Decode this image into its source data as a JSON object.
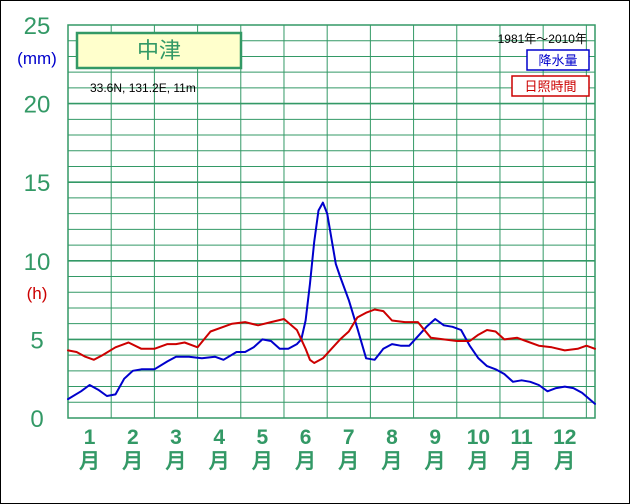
{
  "chart_data": {
    "type": "line",
    "station": "中津",
    "location": "33.6N,  131.2E,  11m",
    "period": "1981年〜2010年",
    "yticks": [
      "0",
      "5",
      "10",
      "15",
      "20",
      "25"
    ],
    "yunits": {
      "precip": "(mm)",
      "sun": "(h)"
    },
    "ylim": [
      0,
      25
    ],
    "months": [
      "1",
      "2",
      "3",
      "4",
      "5",
      "6",
      "7",
      "8",
      "9",
      "10",
      "11",
      "12"
    ],
    "month_suffix": "月",
    "xlim": [
      0.5,
      12.7
    ],
    "series": [
      {
        "name": "降水量",
        "color": "#0000cc",
        "x": [
          0.5,
          0.8,
          1.0,
          1.2,
          1.4,
          1.6,
          1.8,
          2.0,
          2.2,
          2.5,
          2.8,
          3.0,
          3.3,
          3.6,
          3.9,
          4.1,
          4.4,
          4.6,
          4.8,
          5.0,
          5.2,
          5.4,
          5.6,
          5.8,
          5.9,
          6.0,
          6.1,
          6.2,
          6.3,
          6.4,
          6.5,
          6.6,
          6.7,
          6.8,
          7.0,
          7.2,
          7.4,
          7.6,
          7.8,
          8.0,
          8.2,
          8.4,
          8.6,
          8.8,
          9.0,
          9.2,
          9.4,
          9.6,
          9.8,
          10.0,
          10.2,
          10.4,
          10.6,
          10.8,
          11.0,
          11.2,
          11.4,
          11.6,
          11.8,
          12.0,
          12.2,
          12.4,
          12.7
        ],
        "values": [
          1.2,
          1.7,
          2.1,
          1.8,
          1.4,
          1.5,
          2.5,
          3.0,
          3.1,
          3.1,
          3.6,
          3.9,
          3.9,
          3.8,
          3.9,
          3.7,
          4.2,
          4.2,
          4.5,
          5.0,
          4.9,
          4.4,
          4.4,
          4.7,
          5.0,
          6.2,
          8.5,
          11.2,
          13.2,
          13.7,
          13.0,
          11.4,
          9.8,
          9.0,
          7.5,
          5.7,
          3.8,
          3.7,
          4.4,
          4.7,
          4.6,
          4.6,
          5.2,
          5.8,
          6.3,
          5.9,
          5.8,
          5.6,
          4.6,
          3.8,
          3.3,
          3.1,
          2.8,
          2.3,
          2.4,
          2.3,
          2.1,
          1.7,
          1.9,
          2.0,
          1.9,
          1.6,
          0.9
        ]
      },
      {
        "name": "日照時間",
        "color": "#cc0000",
        "x": [
          0.5,
          0.7,
          0.9,
          1.1,
          1.3,
          1.6,
          1.9,
          2.2,
          2.5,
          2.8,
          3.0,
          3.2,
          3.5,
          3.8,
          4.1,
          4.3,
          4.6,
          4.9,
          5.2,
          5.5,
          5.8,
          5.9,
          6.0,
          6.1,
          6.2,
          6.4,
          6.6,
          6.8,
          7.0,
          7.2,
          7.4,
          7.6,
          7.8,
          8.0,
          8.3,
          8.6,
          8.9,
          9.2,
          9.5,
          9.8,
          10.0,
          10.2,
          10.4,
          10.6,
          10.9,
          11.1,
          11.4,
          11.7,
          12.0,
          12.3,
          12.5,
          12.7
        ],
        "values": [
          4.3,
          4.2,
          3.9,
          3.7,
          4.0,
          4.5,
          4.8,
          4.4,
          4.4,
          4.7,
          4.7,
          4.8,
          4.5,
          5.5,
          5.8,
          6.0,
          6.1,
          5.9,
          6.1,
          6.3,
          5.6,
          5.0,
          4.4,
          3.7,
          3.5,
          3.8,
          4.4,
          5.0,
          5.5,
          6.4,
          6.7,
          6.9,
          6.8,
          6.2,
          6.1,
          6.1,
          5.1,
          5.0,
          4.9,
          4.9,
          5.3,
          5.6,
          5.5,
          5.0,
          5.1,
          4.9,
          4.6,
          4.5,
          4.3,
          4.4,
          4.6,
          4.4
        ]
      }
    ]
  }
}
